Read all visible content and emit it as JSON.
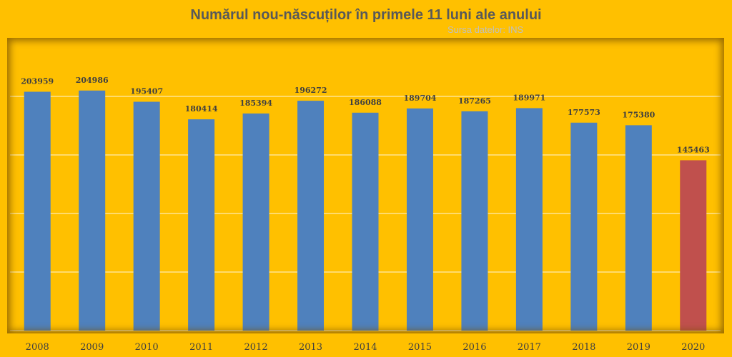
{
  "chart_data": {
    "type": "bar",
    "title": "Numărul nou-născuților în primele 11 luni ale anului",
    "source": "Sursa datelor: INS",
    "categories": [
      "2008",
      "2009",
      "2010",
      "2011",
      "2012",
      "2013",
      "2014",
      "2015",
      "2016",
      "2017",
      "2018",
      "2019",
      "2020"
    ],
    "values": [
      203959,
      204986,
      195407,
      180414,
      185394,
      196272,
      186088,
      189704,
      187265,
      189971,
      177573,
      175380,
      145463
    ],
    "ylim": [
      0,
      250000
    ],
    "y_gridlines": [
      50000,
      100000,
      150000,
      200000
    ],
    "y_tick_labels_shown": false,
    "grid": true,
    "legend": "none",
    "data_labels": true,
    "colors": {
      "background": "#ffc000",
      "bar": "#4f81bd",
      "highlight_bar": "#c0504d",
      "gridline": "#ffffff",
      "text": "#404040"
    },
    "highlight_category": "2020"
  }
}
